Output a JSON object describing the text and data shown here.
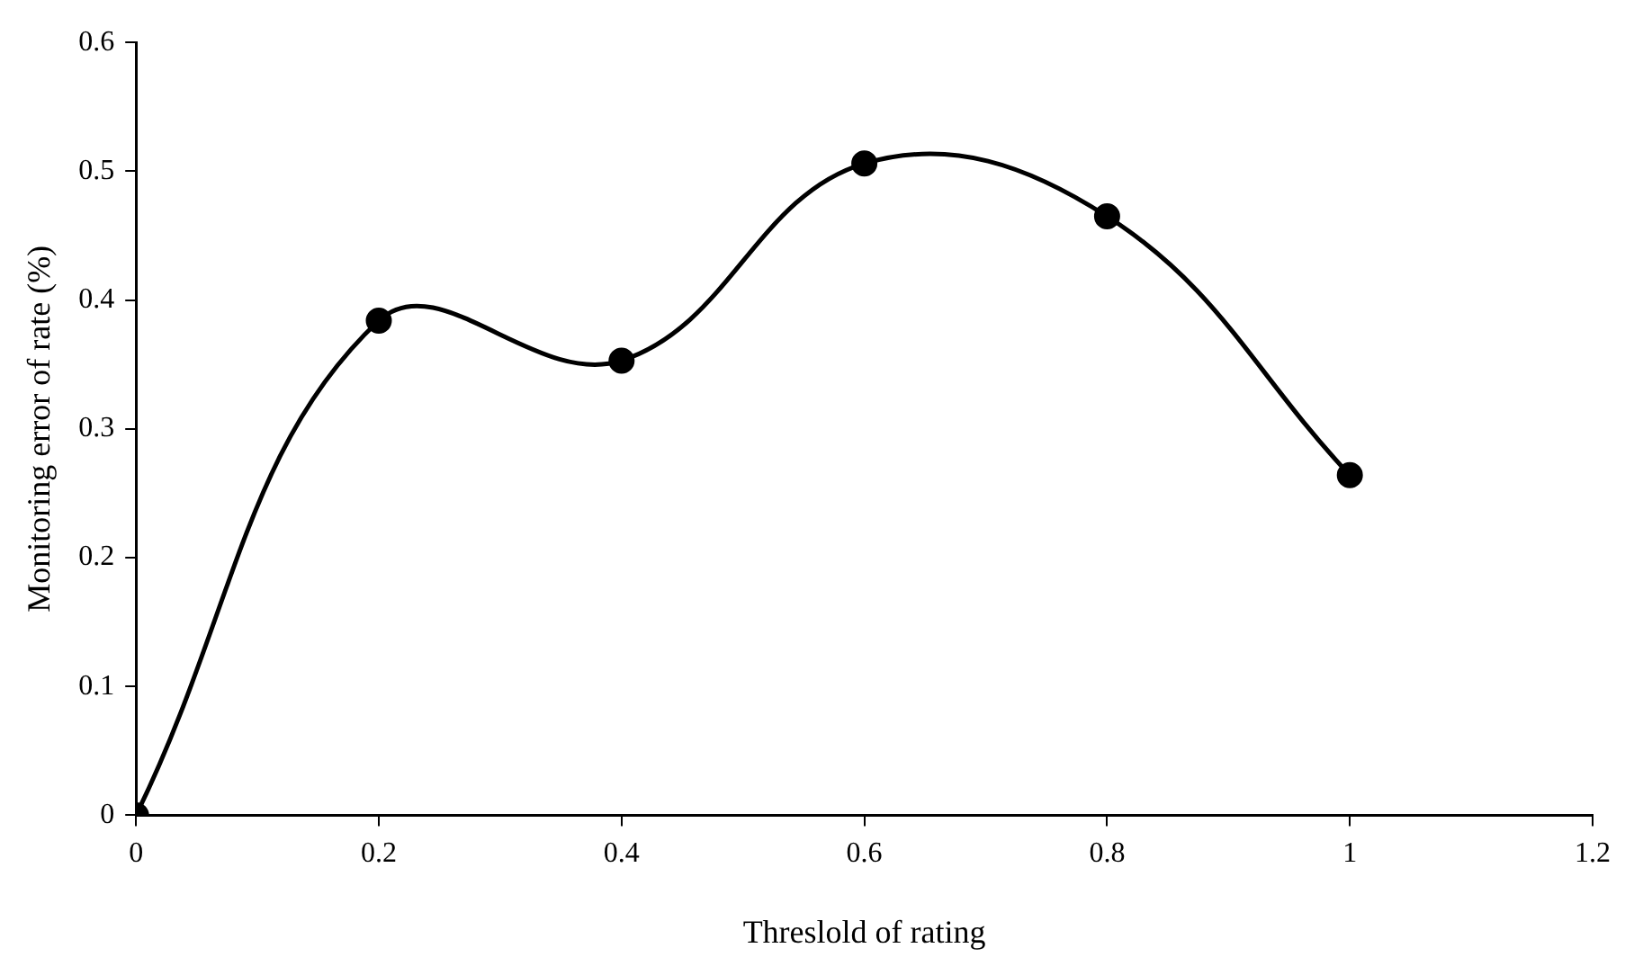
{
  "chart_data": {
    "type": "line",
    "xlabel": "Threslold of rating",
    "ylabel": "Monitoring error of rate (%)",
    "x": [
      0,
      0.2,
      0.4,
      0.6,
      0.8,
      1
    ],
    "series": [
      {
        "color": "#000000",
        "values": [
          0,
          0.384,
          0.353,
          0.506,
          0.465,
          0.264
        ]
      }
    ],
    "xlim": [
      0,
      1.2
    ],
    "xticks": [
      0,
      0.2,
      0.4,
      0.6,
      0.8,
      1,
      1.2
    ],
    "ylim": [
      0,
      0.6
    ],
    "yticks": [
      0,
      0.1,
      0.2,
      0.3,
      0.4,
      0.5,
      0.6
    ],
    "grid": false,
    "legend": false,
    "marker": "circle",
    "line_style": "solid"
  }
}
